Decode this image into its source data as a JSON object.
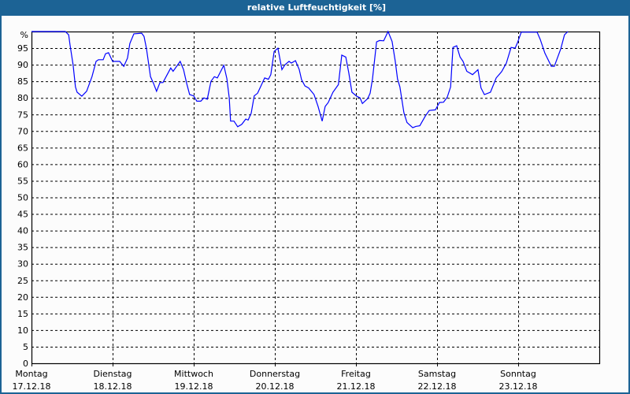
{
  "title": "relative Luftfeuchtigkeit [%]",
  "colors": {
    "titlebar": "#1c6395",
    "line": "#0000ff",
    "grid": "#000000"
  },
  "chart_data": {
    "type": "line",
    "title": "relative Luftfeuchtigkeit [%]",
    "ylabel_top": "%",
    "ylim": [
      0,
      100
    ],
    "yticks": [
      "0",
      "5",
      "10",
      "15",
      "20",
      "25",
      "30",
      "35",
      "40",
      "45",
      "50",
      "55",
      "60",
      "65",
      "70",
      "75",
      "80",
      "85",
      "90",
      "95"
    ],
    "xlim": [
      "17.12.18 00:00",
      "24.12.18 00:00"
    ],
    "xticks": [
      {
        "day": "Montag",
        "date": "17.12.18"
      },
      {
        "day": "Dienstag",
        "date": "18.12.18"
      },
      {
        "day": "Mittwoch",
        "date": "19.12.18"
      },
      {
        "day": "Donnerstag",
        "date": "20.12.18"
      },
      {
        "day": "Freitag",
        "date": "21.12.18"
      },
      {
        "day": "Samstag",
        "date": "22.12.18"
      },
      {
        "day": "Sonntag",
        "date": "23.12.18"
      }
    ],
    "grid": true,
    "series": [
      {
        "x": [
          "17.12.18 00:00",
          "17.12.18 04:12",
          "17.12.18 10:00",
          "17.12.18 11:00",
          "17.12.18 11:24",
          "17.12.18 12:18",
          "17.12.18 13:00",
          "17.12.18 13:30",
          "17.12.18 14:54",
          "17.12.18 16:18",
          "17.12.18 17:54",
          "17.12.18 19:06",
          "17.12.18 19:48",
          "17.12.18 21:12",
          "17.12.18 21:54",
          "17.12.18 22:48",
          "18.12.18 00:00",
          "18.12.18 02:06",
          "18.12.18 03:18",
          "18.12.18 04:24",
          "18.12.18 05:06",
          "18.12.18 06:18",
          "18.12.18 08:36",
          "18.12.18 09:18",
          "18.12.18 10:00",
          "18.12.18 11:12",
          "18.12.18 12:06",
          "18.12.18 13:00",
          "18.12.18 14:00",
          "18.12.18 14:54",
          "18.12.18 17:12",
          "18.12.18 17:54",
          "18.12.18 20:00",
          "18.12.18 21:00",
          "18.12.18 21:54",
          "18.12.18 22:48",
          "19.12.18 00:00",
          "19.12.18 00:54",
          "19.12.18 02:06",
          "19.12.18 03:00",
          "19.12.18 04:00",
          "19.12.18 05:06",
          "19.12.18 06:06",
          "19.12.18 07:00",
          "19.12.18 08:54",
          "19.12.18 09:48",
          "19.12.18 10:30",
          "19.12.18 10:54",
          "19.12.18 11:54",
          "19.12.18 13:00",
          "19.12.18 14:12",
          "19.12.18 15:24",
          "19.12.18 16:06",
          "19.12.18 17:00",
          "19.12.18 17:54",
          "19.12.18 18:54",
          "19.12.18 21:00",
          "19.12.18 22:06",
          "19.12.18 22:48",
          "19.12.18 23:48",
          "20.12.18 00:54",
          "20.12.18 02:06",
          "20.12.18 03:00",
          "20.12.18 04:12",
          "20.12.18 04:54",
          "20.12.18 06:06",
          "20.12.18 07:12",
          "20.12.18 07:54",
          "20.12.18 08:54",
          "20.12.18 10:00",
          "20.12.18 11:36",
          "20.12.18 12:48",
          "20.12.18 14:00",
          "20.12.18 14:54",
          "20.12.18 15:48",
          "20.12.18 17:12",
          "20.12.18 18:48",
          "20.12.18 19:48",
          "20.12.18 21:00",
          "20.12.18 21:54",
          "20.12.18 22:48",
          "21.12.18 00:12",
          "21.12.18 01:12",
          "21.12.18 01:54",
          "21.12.18 03:30",
          "21.12.18 04:12",
          "21.12.18 04:54",
          "21.12.18 06:06",
          "21.12.18 07:00",
          "21.12.18 08:12",
          "21.12.18 09:30",
          "21.12.18 10:42",
          "21.12.18 11:36",
          "21.12.18 12:18",
          "21.12.18 13:00",
          "21.12.18 14:12",
          "21.12.18 15:06",
          "21.12.18 16:48",
          "21.12.18 17:42",
          "21.12.18 18:54",
          "21.12.18 20:30",
          "21.12.18 21:42",
          "21.12.18 23:30",
          "22.12.18 00:42",
          "22.12.18 01:54",
          "22.12.18 03:00",
          "22.12.18 04:00",
          "22.12.18 04:42",
          "22.12.18 05:48",
          "22.12.18 06:48",
          "22.12.18 07:42",
          "22.12.18 08:48",
          "22.12.18 10:30",
          "22.12.18 12:06",
          "22.12.18 13:00",
          "22.12.18 14:00",
          "22.12.18 15:48",
          "22.12.18 17:30",
          "22.12.18 19:06",
          "22.12.18 20:30",
          "22.12.18 21:54",
          "22.12.18 23:06",
          "22.12.18 23:48",
          "23.12.18 00:54",
          "23.12.18 05:36",
          "23.12.18 06:30",
          "23.12.18 07:54",
          "23.12.18 09:48",
          "23.12.18 10:42",
          "23.12.18 12:36",
          "23.12.18 13:42",
          "23.12.18 14:42"
        ],
        "y": [
          100,
          100,
          100,
          99,
          96,
          90,
          83.3,
          81.7,
          80.5,
          82,
          86.4,
          91,
          91.5,
          91.5,
          93.3,
          93.6,
          91,
          91,
          89.5,
          92,
          96.4,
          99.3,
          99.5,
          98.5,
          95,
          86.4,
          84.4,
          82,
          84.6,
          84.6,
          89,
          88,
          91,
          88.5,
          84.4,
          81,
          80.6,
          79,
          79,
          80,
          79.6,
          85,
          86.4,
          86,
          89.8,
          85.8,
          80,
          73,
          73,
          71.3,
          72,
          73.6,
          73.3,
          75.4,
          80.6,
          81.4,
          86,
          85.6,
          87,
          94,
          95,
          88.5,
          90,
          91,
          90.5,
          91.2,
          88.6,
          85.5,
          83.6,
          83,
          81,
          77.4,
          73,
          77.4,
          78.6,
          81.7,
          84,
          92.9,
          92.3,
          87.4,
          81.7,
          80.5,
          80,
          78.3,
          79.8,
          81.4,
          85.7,
          96.9,
          97.3,
          97.2,
          100,
          97,
          91.2,
          85.7,
          83.3,
          75.5,
          72.6,
          71,
          71.4,
          71.6,
          74.5,
          76.2,
          76.4,
          78.6,
          78.7,
          80.2,
          83.3,
          95.2,
          95.7,
          92.3,
          91,
          88,
          87,
          88.5,
          83,
          81,
          81.7,
          86,
          87.9,
          90.5,
          95.2,
          95,
          96.6,
          99.8,
          99.8,
          97.7,
          93.5,
          89.5,
          89.5,
          94.8,
          99,
          100
        ]
      }
    ]
  }
}
